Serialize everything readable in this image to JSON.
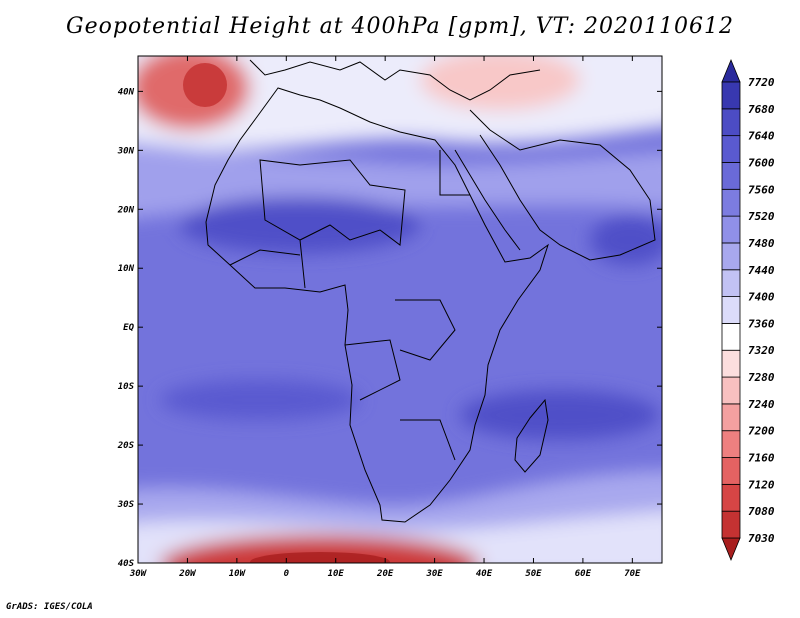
{
  "title": "Geopotential Height at 400hPa [gpm], VT: 2020110612",
  "credit": "GrADS: IGES/COLA",
  "map": {
    "lon_range": [
      -30,
      76
    ],
    "lat_range": [
      -40,
      46
    ],
    "lon_ticks": [
      {
        "value": -30,
        "label": "30W"
      },
      {
        "value": -20,
        "label": "20W"
      },
      {
        "value": -10,
        "label": "10W"
      },
      {
        "value": 0,
        "label": "0"
      },
      {
        "value": 10,
        "label": "10E"
      },
      {
        "value": 20,
        "label": "20E"
      },
      {
        "value": 30,
        "label": "30E"
      },
      {
        "value": 40,
        "label": "40E"
      },
      {
        "value": 50,
        "label": "50E"
      },
      {
        "value": 60,
        "label": "60E"
      },
      {
        "value": 70,
        "label": "70E"
      }
    ],
    "lat_ticks": [
      {
        "value": 40,
        "label": "40N"
      },
      {
        "value": 30,
        "label": "30N"
      },
      {
        "value": 20,
        "label": "20N"
      },
      {
        "value": 10,
        "label": "10N"
      },
      {
        "value": 0,
        "label": "EQ"
      },
      {
        "value": -10,
        "label": "10S"
      },
      {
        "value": -20,
        "label": "20S"
      },
      {
        "value": -30,
        "label": "30S"
      },
      {
        "value": -40,
        "label": "40S"
      }
    ]
  },
  "colorbar": {
    "levels": [
      "7030",
      "7080",
      "7120",
      "7160",
      "7200",
      "7240",
      "7280",
      "7320",
      "7360",
      "7400",
      "7440",
      "7480",
      "7520",
      "7560",
      "7600",
      "7640",
      "7680",
      "7720"
    ],
    "colors": [
      "#a81e1e",
      "#c43232",
      "#d64545",
      "#e46262",
      "#ee8080",
      "#f4a0a0",
      "#f8c0c0",
      "#fcdede",
      "#ffffff",
      "#dcdcfa",
      "#c2c2f4",
      "#a8a8ee",
      "#9090e8",
      "#7c7ce0",
      "#6a6ad8",
      "#5a5ad0",
      "#4c4cc4",
      "#3838b0",
      "#2a2a9c"
    ]
  }
}
